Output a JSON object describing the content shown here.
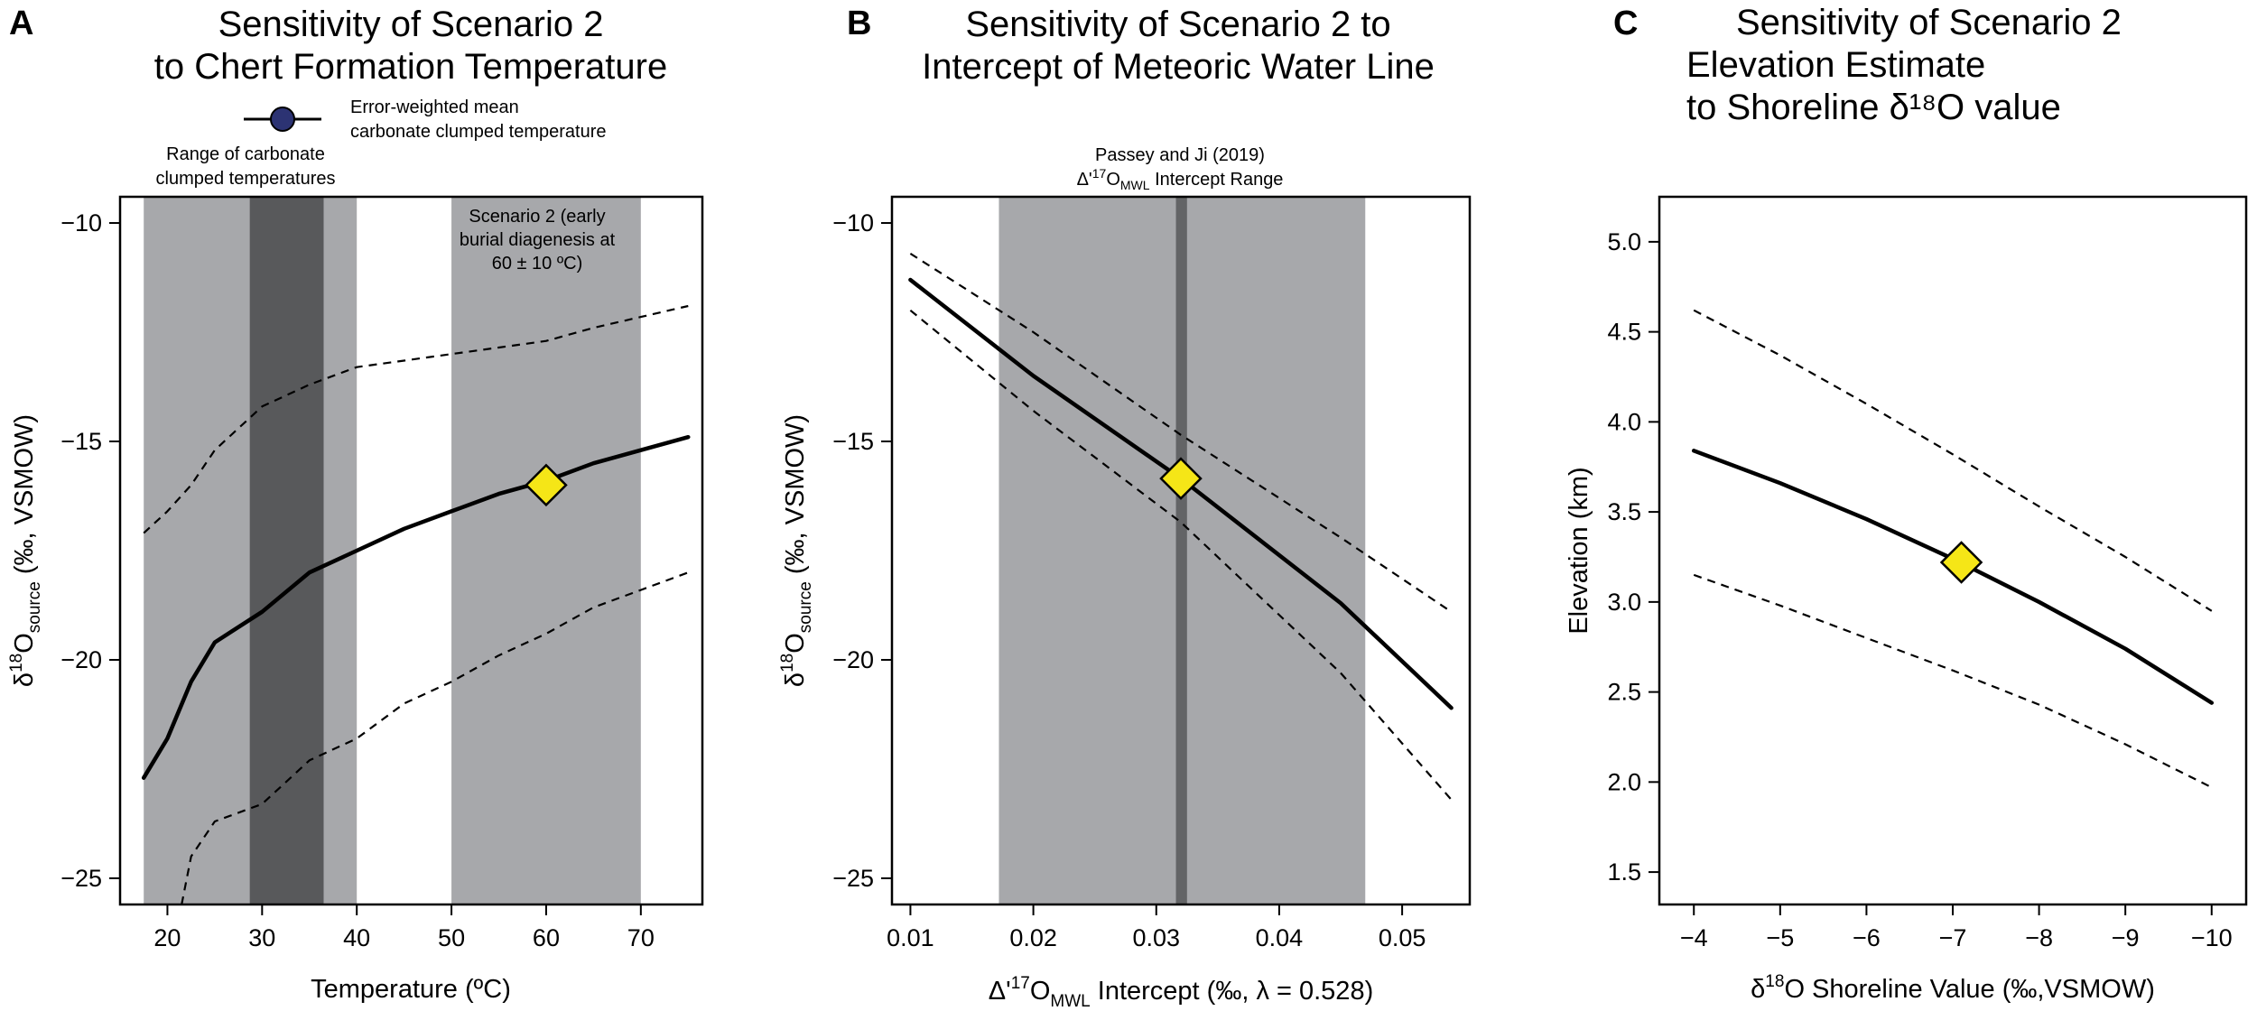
{
  "figure": {
    "panels": [
      "A",
      "B",
      "C"
    ]
  },
  "chart_data": [
    {
      "type": "line",
      "panel_letter": "A",
      "title": [
        "Sensitivity of Scenario 2",
        "to Chert Formation Temperature"
      ],
      "xlabel": "Temperature (ºC)",
      "ylabel": {
        "main": "δ",
        "sup": "18",
        "mid": "O",
        "sub": "source",
        "tail": " (‰, VSMOW)"
      },
      "xlim": [
        15,
        76.5
      ],
      "ylim": [
        -25.6,
        -9.4
      ],
      "xticks": [
        20,
        30,
        40,
        50,
        60,
        70
      ],
      "yticks": [
        -10,
        -15,
        -20,
        -25
      ],
      "xtick_labels": [
        "20",
        "30",
        "40",
        "50",
        "60",
        "70"
      ],
      "ytick_labels": [
        "−10",
        "−15",
        "−20",
        "−25"
      ],
      "bands": [
        {
          "name": "Range of carbonate clumped temperatures",
          "x0": 17.5,
          "x1": 40,
          "color": "#a7a8ab"
        },
        {
          "name": "Error-weighted mean carbonate clumped temperature",
          "x0": 28.7,
          "x1": 36.5,
          "color": "#58595b"
        },
        {
          "name": "Scenario 2 range",
          "x0": 50,
          "x1": 70,
          "color": "#a7a8ab"
        }
      ],
      "series": [
        {
          "name": "central",
          "style": "solid",
          "x": [
            17.5,
            20,
            22.5,
            25,
            30,
            35,
            40,
            45,
            50,
            55,
            60,
            65,
            70,
            75
          ],
          "y": [
            -22.7,
            -21.8,
            -20.5,
            -19.6,
            -18.9,
            -18.0,
            -17.5,
            -17.0,
            -16.6,
            -16.2,
            -15.9,
            -15.5,
            -15.2,
            -14.9
          ]
        },
        {
          "name": "upper bound",
          "style": "dashed",
          "x": [
            17.5,
            20,
            22.5,
            25,
            30,
            35,
            40,
            45,
            50,
            55,
            60,
            65,
            70,
            75
          ],
          "y": [
            -17.1,
            -16.6,
            -16.0,
            -15.2,
            -14.2,
            -13.7,
            -13.3,
            -13.15,
            -13.0,
            -12.85,
            -12.7,
            -12.4,
            -12.15,
            -11.9
          ]
        },
        {
          "name": "lower bound",
          "style": "dashed",
          "x": [
            21.5,
            22.5,
            25,
            30,
            35,
            40,
            45,
            50,
            55,
            60,
            65,
            70,
            75
          ],
          "y": [
            -25.6,
            -24.5,
            -23.7,
            -23.3,
            -22.3,
            -21.8,
            -21.0,
            -20.5,
            -19.9,
            -19.4,
            -18.8,
            -18.4,
            -18.0
          ]
        }
      ],
      "marker": {
        "x": 60,
        "y": -16.0
      },
      "annotations": {
        "legend_lines": [
          "Error-weighted mean",
          "carbonate clumped temperature"
        ],
        "range_lines": [
          "Range of carbonate",
          "clumped temperatures"
        ],
        "scenario_lines": [
          "Scenario 2 (early",
          "burial diagenesis at",
          "60 ± 10 ºC)"
        ]
      }
    },
    {
      "type": "line",
      "panel_letter": "B",
      "title": [
        "Sensitivity of Scenario 2 to",
        "Intercept of Meteoric Water Line"
      ],
      "xlabel": {
        "pre": "Δ'",
        "sup": "17",
        "mid": "O",
        "sub": "MWL",
        "tail": " Intercept (‰, λ = 0.528)"
      },
      "ylabel": {
        "main": "δ",
        "sup": "18",
        "mid": "O",
        "sub": "source",
        "tail": " (‰, VSMOW)"
      },
      "xlim": [
        0.0085,
        0.0555
      ],
      "ylim": [
        -25.6,
        -9.4
      ],
      "xticks": [
        0.01,
        0.02,
        0.03,
        0.04,
        0.05
      ],
      "yticks": [
        -10,
        -15,
        -20,
        -25
      ],
      "xtick_labels": [
        "0.01",
        "0.02",
        "0.03",
        "0.04",
        "0.05"
      ],
      "ytick_labels": [
        "−10",
        "−15",
        "−20",
        "−25"
      ],
      "bands": [
        {
          "name": "Passey and Ji (2019) intercept range",
          "x0": 0.0172,
          "x1": 0.047,
          "color": "#a7a8ab"
        },
        {
          "name": "central intercept",
          "x0": 0.0316,
          "x1": 0.0325,
          "color": "#636466"
        }
      ],
      "series": [
        {
          "name": "central",
          "style": "solid",
          "x": [
            0.01,
            0.02,
            0.032,
            0.045,
            0.054
          ],
          "y": [
            -11.3,
            -13.5,
            -15.85,
            -18.7,
            -21.1
          ]
        },
        {
          "name": "upper bound",
          "style": "dashed",
          "x": [
            0.01,
            0.02,
            0.032,
            0.045,
            0.054
          ],
          "y": [
            -10.7,
            -12.5,
            -14.85,
            -17.2,
            -18.9
          ]
        },
        {
          "name": "lower bound",
          "style": "dashed",
          "x": [
            0.01,
            0.02,
            0.032,
            0.045,
            0.054
          ],
          "y": [
            -12.0,
            -14.3,
            -16.85,
            -20.3,
            -23.2
          ]
        }
      ],
      "marker": {
        "x": 0.032,
        "y": -15.85
      },
      "annotations": {
        "range_line1": "Passey and Ji (2019)",
        "range_line2": {
          "pre": "Δ'",
          "sup": "17",
          "mid": "O",
          "sub": "MWL",
          "tail": " Intercept Range"
        }
      }
    },
    {
      "type": "line",
      "panel_letter": "C",
      "title": [
        "Sensitivity of Scenario 2",
        "Elevation Estimate",
        "to Shoreline δ¹⁸O value"
      ],
      "xlabel": {
        "pre": "δ",
        "sup": "18",
        "tail": "O Shoreline Value (‰,VSMOW)"
      },
      "ylabel": "Elevation (km)",
      "xlim": [
        -3.6,
        -10.4
      ],
      "ylim": [
        1.32,
        5.25
      ],
      "xticks": [
        -4,
        -5,
        -6,
        -7,
        -8,
        -9,
        -10
      ],
      "yticks": [
        1.5,
        2.0,
        2.5,
        3.0,
        3.5,
        4.0,
        4.5,
        5.0
      ],
      "xtick_labels": [
        "−4",
        "−5",
        "−6",
        "−7",
        "−8",
        "−9",
        "−10"
      ],
      "ytick_labels": [
        "1.5",
        "2.0",
        "2.5",
        "3.0",
        "3.5",
        "4.0",
        "4.5",
        "5.0"
      ],
      "bands": [],
      "series": [
        {
          "name": "central",
          "style": "solid",
          "x": [
            -4,
            -5,
            -6,
            -7,
            -8,
            -9,
            -10
          ],
          "y": [
            3.84,
            3.66,
            3.46,
            3.24,
            3.0,
            2.74,
            2.44
          ]
        },
        {
          "name": "upper bound",
          "style": "dashed",
          "x": [
            -4,
            -5,
            -6,
            -7,
            -8,
            -9,
            -10
          ],
          "y": [
            4.62,
            4.37,
            4.1,
            3.82,
            3.53,
            3.25,
            2.95
          ]
        },
        {
          "name": "lower bound",
          "style": "dashed",
          "x": [
            -4,
            -5,
            -6,
            -7,
            -8,
            -9,
            -10
          ],
          "y": [
            3.15,
            2.98,
            2.8,
            2.62,
            2.43,
            2.21,
            1.97
          ]
        }
      ],
      "marker": {
        "x": -7.1,
        "y": 3.22
      },
      "annotations": {}
    }
  ]
}
